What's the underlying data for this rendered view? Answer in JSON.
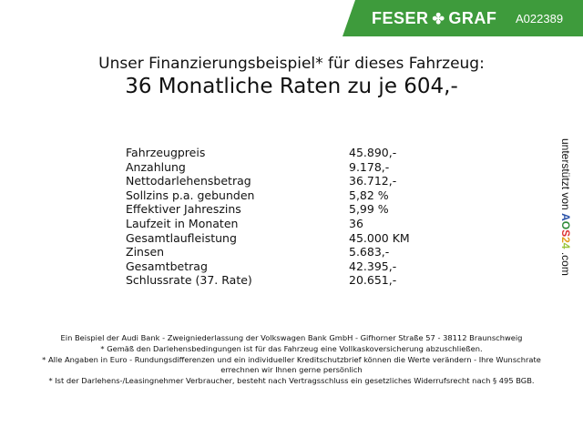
{
  "header": {
    "brand": "FESER",
    "brand2": "GRAF",
    "brand_icon": "clover-icon",
    "ad_code": "A022389",
    "brand_color": "#3e9b3c"
  },
  "title": {
    "line1": "Unser Finanzierungsbeispiel* für dieses Fahrzeug:",
    "line2": "36 Monatliche Raten zu je 604,-"
  },
  "rows": [
    {
      "label": "Fahrzeugpreis",
      "value": "45.890,-"
    },
    {
      "label": "Anzahlung",
      "value": "9.178,-"
    },
    {
      "label": "Nettodarlehensbetrag",
      "value": "36.712,-"
    },
    {
      "label": "Sollzins p.a. gebunden",
      "value": "5,82 %"
    },
    {
      "label": "Effektiver Jahreszins",
      "value": "5,99 %"
    },
    {
      "label": "Laufzeit in Monaten",
      "value": "36"
    },
    {
      "label": "Gesamtlaufleistung",
      "value": "45.000 KM"
    },
    {
      "label": "Zinsen",
      "value": "5.683,-"
    },
    {
      "label": "Gesamtbetrag",
      "value": "42.395,-"
    },
    {
      "label": "Schlussrate (37. Rate)",
      "value": "20.651,-"
    }
  ],
  "side": {
    "text": "unterstützt von",
    "a": "A",
    "o": "O",
    "s": "S",
    "n2": "2",
    "n4": "4",
    "com": ".com"
  },
  "footer": [
    "Ein Beispiel der Audi Bank - Zweigniederlassung der Volkswagen Bank GmbH - Gifhorner Straße 57 - 38112 Braunschweig",
    "* Gemäß den Darlehensbedingungen ist für das Fahrzeug eine Vollkaskoversicherung abzuschließen.",
    "* Alle Angaben in Euro - Rundungsdifferenzen und ein individueller Kreditschutzbrief können die Werte verändern - Ihre Wunschrate errechnen wir Ihnen gerne persönlich",
    "* Ist der Darlehens-/Leasingnehmer Verbraucher, besteht nach Vertragsschluss ein gesetzliches Widerrufsrecht nach § 495 BGB."
  ]
}
